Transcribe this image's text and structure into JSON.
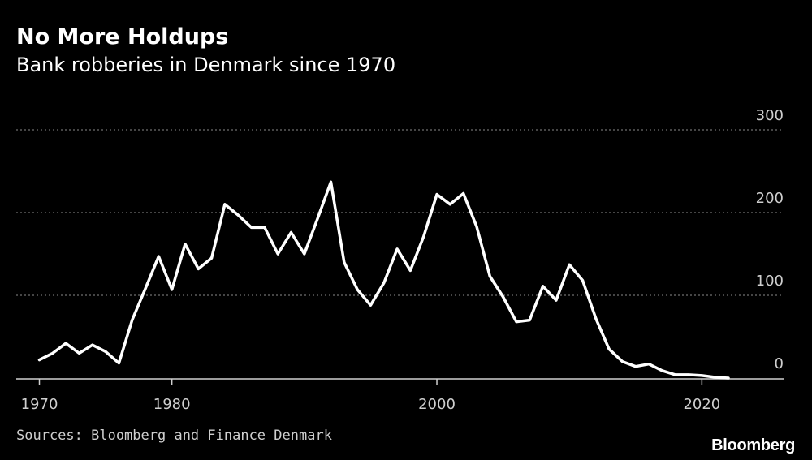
{
  "header": {
    "title": "No More Holdups",
    "subtitle": "Bank robberies in Denmark since 1970"
  },
  "footer": {
    "source": "Sources: Bloomberg and Finance Denmark",
    "brand": "Bloomberg"
  },
  "colors": {
    "background": "#000000",
    "line": "#ffffff",
    "grid": "#8a8a8a",
    "axis": "#cfcfcf"
  },
  "chart_data": {
    "type": "line",
    "title": "No More Holdups",
    "subtitle": "Bank robberies in Denmark since 1970",
    "xlabel": "",
    "ylabel": "",
    "xlim": [
      1969.5,
      2025
    ],
    "ylim": [
      0,
      300
    ],
    "x_ticks": [
      1970,
      1980,
      2000,
      2020
    ],
    "x_tick_labels": [
      "1970",
      "1980",
      "2000",
      "2020"
    ],
    "y_ticks": [
      0,
      100,
      200,
      300
    ],
    "y_tick_labels": [
      "0",
      "100",
      "200",
      "300"
    ],
    "grid": "horizontal dotted",
    "series": [
      {
        "name": "Bank robberies",
        "x": [
          1970,
          1971,
          1972,
          1973,
          1974,
          1975,
          1976,
          1977,
          1978,
          1979,
          1980,
          1981,
          1982,
          1983,
          1984,
          1985,
          1986,
          1987,
          1988,
          1989,
          1990,
          1991,
          1992,
          1993,
          1994,
          1995,
          1996,
          1997,
          1998,
          1999,
          2000,
          2001,
          2002,
          2003,
          2004,
          2005,
          2006,
          2007,
          2008,
          2009,
          2010,
          2011,
          2012,
          2013,
          2014,
          2015,
          2016,
          2017,
          2018,
          2019,
          2020,
          2021,
          2022
        ],
        "values": [
          22,
          30,
          42,
          30,
          40,
          32,
          18,
          70,
          108,
          147,
          107,
          162,
          132,
          145,
          210,
          197,
          182,
          182,
          150,
          176,
          150,
          193,
          237,
          140,
          107,
          88,
          115,
          156,
          130,
          171,
          222,
          210,
          223,
          183,
          123,
          98,
          68,
          70,
          111,
          94,
          137,
          118,
          72,
          35,
          20,
          14,
          17,
          9,
          4,
          4,
          3,
          1,
          0
        ]
      }
    ]
  }
}
